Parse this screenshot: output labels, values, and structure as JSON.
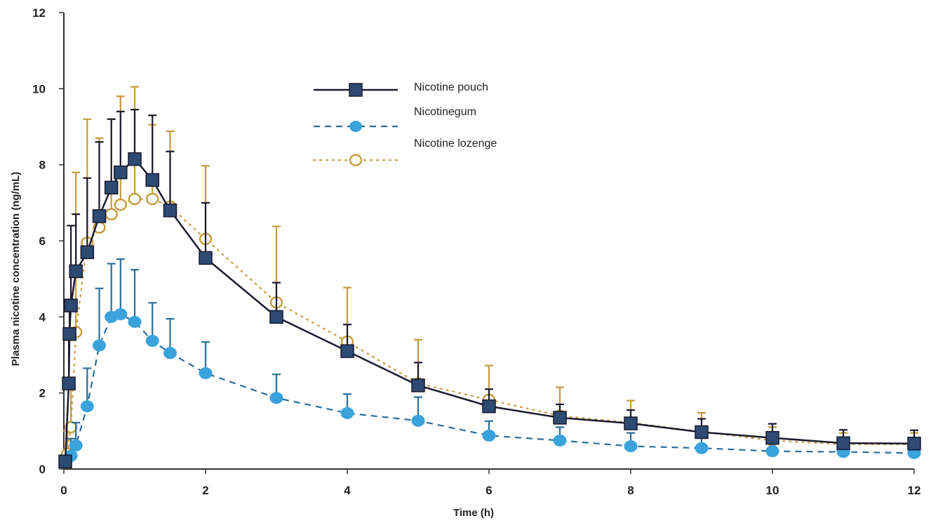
{
  "chart_data": {
    "type": "line",
    "title": "",
    "xlabel": "Time (h)",
    "ylabel": "Plasma nicotine concentration (ng/mL)",
    "xlim": [
      0,
      12
    ],
    "ylim": [
      0,
      12
    ],
    "xticks": [
      "0",
      "2",
      "4",
      "6",
      "8",
      "10",
      "12"
    ],
    "yticks": [
      "0",
      "2",
      "4",
      "6",
      "8",
      "10",
      "12"
    ],
    "grid": false,
    "legend_position": "top-center",
    "series": [
      {
        "name": "Nicotine pouch",
        "color": "#1a1a2e",
        "marker": "filled-square",
        "marker_color": "#2c4a72",
        "line_style": "solid",
        "x": [
          0.02,
          0.07,
          0.08,
          0.1,
          0.17,
          0.33,
          0.5,
          0.67,
          0.8,
          1.0,
          1.25,
          1.5,
          2.0,
          3.0,
          4.0,
          5.0,
          6.0,
          7.0,
          8.0,
          9.0,
          10.0,
          11.0,
          12.0
        ],
        "y": [
          0.2,
          2.25,
          3.55,
          4.3,
          5.2,
          5.7,
          6.65,
          7.4,
          7.8,
          8.15,
          7.6,
          6.8,
          5.55,
          4.0,
          3.1,
          2.2,
          1.65,
          1.35,
          1.2,
          0.97,
          0.82,
          0.68,
          0.67
        ],
        "error": [
          0.0,
          1.4,
          0.7,
          2.1,
          1.5,
          1.95,
          1.95,
          1.8,
          1.6,
          1.3,
          1.7,
          1.55,
          1.45,
          0.9,
          0.7,
          0.6,
          0.45,
          0.35,
          0.35,
          0.35,
          0.37,
          0.35,
          0.35
        ]
      },
      {
        "name": "Nicotinegum",
        "color": "#2a6e9a",
        "marker": "filled-circle",
        "marker_color": "#3aa3dc",
        "line_style": "dashed",
        "x": [
          0.03,
          0.1,
          0.17,
          0.33,
          0.5,
          0.67,
          0.8,
          1.0,
          1.25,
          1.5,
          2.0,
          3.0,
          4.0,
          5.0,
          6.0,
          7.0,
          8.0,
          9.0,
          10.0,
          11.0,
          12.0
        ],
        "y": [
          0.2,
          0.35,
          0.62,
          1.65,
          3.25,
          4.0,
          4.07,
          3.87,
          3.37,
          3.05,
          2.52,
          1.87,
          1.47,
          1.27,
          0.88,
          0.75,
          0.6,
          0.55,
          0.47,
          0.45,
          0.42
        ],
        "error": [
          0.0,
          0.45,
          0.6,
          1.0,
          1.5,
          1.4,
          1.45,
          1.37,
          1.0,
          0.9,
          0.82,
          0.62,
          0.5,
          0.62,
          0.38,
          0.35,
          0.35,
          0.3,
          0.25,
          0.3,
          0.3
        ]
      },
      {
        "name": "Nicotine lozenge",
        "color": "#c49a3c",
        "marker": "open-circle",
        "marker_color": "#c49a3c",
        "line_style": "dotted",
        "x": [
          0.05,
          0.1,
          0.17,
          0.33,
          0.5,
          0.67,
          0.8,
          1.0,
          1.25,
          1.5,
          2.0,
          3.0,
          4.0,
          5.0,
          6.0,
          7.0,
          8.0,
          9.0,
          10.0,
          11.0,
          12.0
        ],
        "y": [
          0.4,
          1.1,
          3.6,
          5.95,
          6.35,
          6.7,
          6.95,
          7.1,
          7.1,
          6.9,
          6.05,
          4.38,
          3.35,
          2.25,
          1.82,
          1.4,
          1.22,
          0.98,
          0.75,
          0.65,
          0.65
        ],
        "error": [
          0.6,
          1.0,
          4.2,
          3.25,
          2.35,
          2.5,
          2.85,
          2.95,
          1.95,
          1.98,
          1.92,
          2.0,
          1.42,
          1.15,
          0.9,
          0.75,
          0.58,
          0.5,
          0.35,
          0.3,
          0.3
        ]
      }
    ]
  }
}
